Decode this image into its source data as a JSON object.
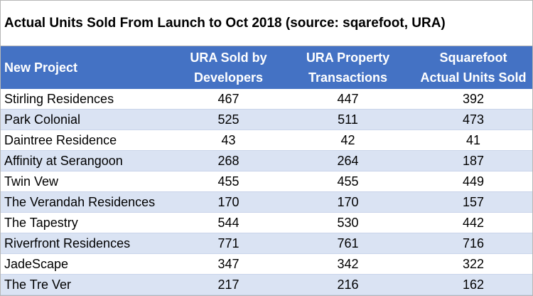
{
  "title": "Actual Units Sold From Launch to Oct 2018 (source: sqarefoot, URA)",
  "headers": {
    "project": "New Project",
    "ura_dev_line1": "URA Sold by",
    "ura_dev_line2": "Developers",
    "ura_tx_line1": "URA Property",
    "ura_tx_line2": "Transactions",
    "sqft_line1": "Squarefoot",
    "sqft_line2": "Actual Units Sold"
  },
  "colors": {
    "header_bg": "#4472c4",
    "header_text": "#ffffff",
    "band": "#dae3f3"
  },
  "rows": [
    {
      "project": "Stirling Residences",
      "ura_dev": "467",
      "ura_tx": "447",
      "sqft": "392"
    },
    {
      "project": "Park Colonial",
      "ura_dev": "525",
      "ura_tx": "511",
      "sqft": "473"
    },
    {
      "project": "Daintree Residence",
      "ura_dev": "43",
      "ura_tx": "42",
      "sqft": "41"
    },
    {
      "project": "Affinity at Serangoon",
      "ura_dev": "268",
      "ura_tx": "264",
      "sqft": "187"
    },
    {
      "project": "Twin Vew",
      "ura_dev": "455",
      "ura_tx": "455",
      "sqft": "449"
    },
    {
      "project": "The Verandah Residences",
      "ura_dev": "170",
      "ura_tx": "170",
      "sqft": "157"
    },
    {
      "project": "The Tapestry",
      "ura_dev": "544",
      "ura_tx": "530",
      "sqft": "442"
    },
    {
      "project": "Riverfront Residences",
      "ura_dev": "771",
      "ura_tx": "761",
      "sqft": "716"
    },
    {
      "project": "JadeScape",
      "ura_dev": "347",
      "ura_tx": "342",
      "sqft": "322"
    },
    {
      "project": "The Tre Ver",
      "ura_dev": "217",
      "ura_tx": "216",
      "sqft": "162"
    }
  ]
}
